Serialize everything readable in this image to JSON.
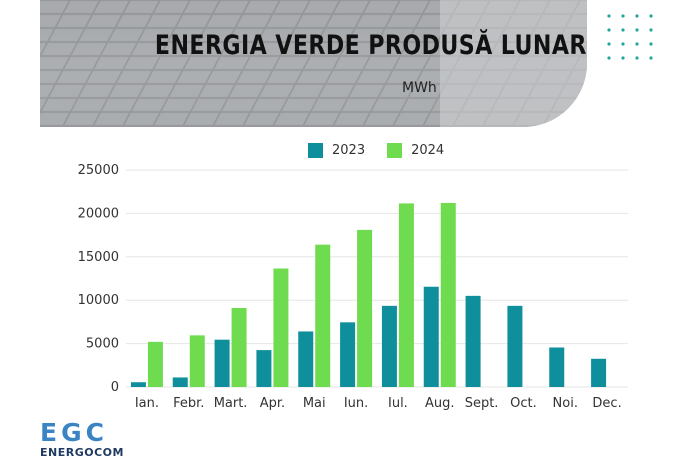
{
  "header": {
    "title": "ENERGIA VERDE PRODUSĂ LUNAR",
    "unit": "MWh"
  },
  "colors": {
    "series_2023": "#0e8f9b",
    "series_2024": "#6fdb4f",
    "grid": "#e6e6e6",
    "logo_mark": "#3b84c4",
    "logo_text": "#1f3a63",
    "dots": "#24a79b"
  },
  "logo": {
    "mark": "EGC",
    "text": "ENERGOCOM"
  },
  "chart_data": {
    "type": "bar",
    "title": "ENERGIA VERDE PRODUSĂ LUNAR",
    "subtitle": "MWh",
    "xlabel": "",
    "ylabel": "",
    "categories": [
      "Ian.",
      "Febr.",
      "Mart.",
      "Apr.",
      "Mai",
      "Iun.",
      "Iul.",
      "Aug.",
      "Sept.",
      "Oct.",
      "Noi.",
      "Dec."
    ],
    "series": [
      {
        "name": "2023",
        "color": "#0e8f9b",
        "values": [
          550,
          1100,
          5450,
          4250,
          6400,
          7450,
          9350,
          11550,
          10500,
          9350,
          4550,
          3250
        ]
      },
      {
        "name": "2024",
        "color": "#6fdb4f",
        "values": [
          5200,
          5950,
          9100,
          13650,
          16400,
          18100,
          21150,
          21200,
          null,
          null,
          null,
          null
        ]
      }
    ],
    "ylim": [
      0,
      25000
    ],
    "yticks": [
      "0",
      "5000",
      "10000",
      "15000",
      "20000",
      "25000"
    ],
    "grid": true,
    "legend": "top-center"
  }
}
